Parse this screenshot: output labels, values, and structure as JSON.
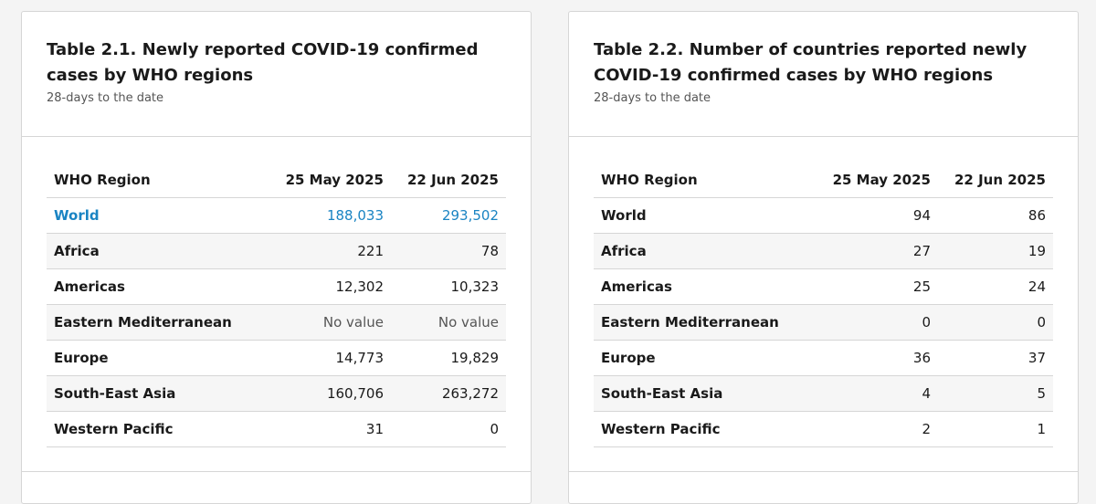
{
  "tables": [
    {
      "title": "Table 2.1. Newly reported COVID-19 confirmed cases by WHO regions",
      "subtitle": "28-days to the date",
      "columns": [
        "WHO Region",
        "25 May 2025",
        "22 Jun 2025"
      ],
      "rows": [
        {
          "region": "World",
          "v1": "188,033",
          "v2": "293,502",
          "link": true
        },
        {
          "region": "Africa",
          "v1": "221",
          "v2": "78"
        },
        {
          "region": "Americas",
          "v1": "12,302",
          "v2": "10,323"
        },
        {
          "region": "Eastern Mediterranean",
          "v1": "No value",
          "v2": "No value"
        },
        {
          "region": "Europe",
          "v1": "14,773",
          "v2": "19,829"
        },
        {
          "region": "South-East Asia",
          "v1": "160,706",
          "v2": "263,272"
        },
        {
          "region": "Western Pacific",
          "v1": "31",
          "v2": "0"
        }
      ]
    },
    {
      "title": "Table 2.2. Number of countries reported newly COVID-19 confirmed cases by WHO regions",
      "subtitle": "28-days to the date",
      "columns": [
        "WHO Region",
        "25 May 2025",
        "22 Jun 2025"
      ],
      "rows": [
        {
          "region": "World",
          "v1": "94",
          "v2": "86"
        },
        {
          "region": "Africa",
          "v1": "27",
          "v2": "19"
        },
        {
          "region": "Americas",
          "v1": "25",
          "v2": "24"
        },
        {
          "region": "Eastern Mediterranean",
          "v1": "0",
          "v2": "0"
        },
        {
          "region": "Europe",
          "v1": "36",
          "v2": "37"
        },
        {
          "region": "South-East Asia",
          "v1": "4",
          "v2": "5"
        },
        {
          "region": "Western Pacific",
          "v1": "2",
          "v2": "1"
        }
      ]
    }
  ],
  "colors": {
    "link": "#1a84c3",
    "alt_row": "#f6f6f6",
    "border": "#d6d6d6"
  }
}
